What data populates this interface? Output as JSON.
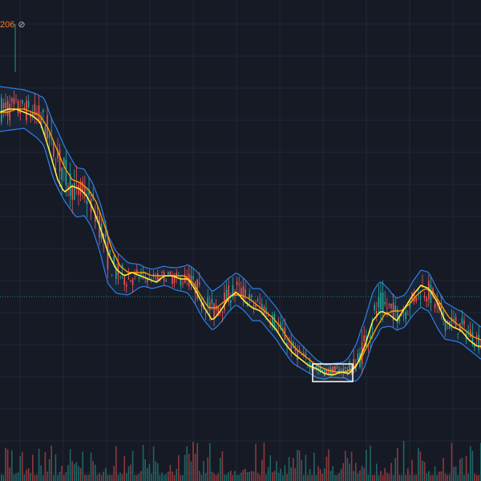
{
  "legend": {
    "value_text": "206",
    "hidden_icon": "eye-slash-icon",
    "value_color": "#ff7b1a"
  },
  "chart_data": {
    "type": "candlestick",
    "grid": true,
    "x_axis_visible": false,
    "y_axis_visible": false,
    "colors": {
      "background": "#161a25",
      "grid": "#232736",
      "up_candle": "#26a69a",
      "down_candle": "#ef5350",
      "ma_fast": "#ffeb3b",
      "ma_slow": "#ff9800",
      "bollinger_band": "#2f7ee6",
      "bollinger_fill": "#1c2c44",
      "price_line": "#1e8c7e",
      "selection_box": "#ffffff"
    },
    "price_line_level": 0.275,
    "ylim": [
      0,
      1
    ],
    "midline": [
      [
        0,
        0.86
      ],
      [
        15,
        0.86
      ],
      [
        30,
        0.86
      ],
      [
        45,
        0.84
      ],
      [
        55,
        0.82
      ],
      [
        65,
        0.74
      ],
      [
        80,
        0.66
      ],
      [
        95,
        0.6
      ],
      [
        105,
        0.6
      ],
      [
        115,
        0.56
      ],
      [
        125,
        0.49
      ],
      [
        135,
        0.39
      ],
      [
        145,
        0.35
      ],
      [
        160,
        0.33
      ],
      [
        175,
        0.34
      ],
      [
        190,
        0.33
      ],
      [
        205,
        0.34
      ],
      [
        220,
        0.33
      ],
      [
        235,
        0.33
      ],
      [
        245,
        0.3
      ],
      [
        255,
        0.26
      ],
      [
        265,
        0.23
      ],
      [
        275,
        0.25
      ],
      [
        285,
        0.28
      ],
      [
        295,
        0.3
      ],
      [
        305,
        0.28
      ],
      [
        315,
        0.25
      ],
      [
        325,
        0.25
      ],
      [
        335,
        0.22
      ],
      [
        345,
        0.19
      ],
      [
        355,
        0.15
      ],
      [
        365,
        0.11
      ],
      [
        375,
        0.09
      ],
      [
        385,
        0.07
      ],
      [
        395,
        0.05
      ],
      [
        405,
        0.04
      ],
      [
        415,
        0.045
      ],
      [
        425,
        0.045
      ],
      [
        435,
        0.05
      ],
      [
        445,
        0.07
      ],
      [
        455,
        0.13
      ],
      [
        465,
        0.21
      ],
      [
        475,
        0.25
      ],
      [
        485,
        0.24
      ],
      [
        495,
        0.22
      ],
      [
        505,
        0.23
      ],
      [
        515,
        0.27
      ],
      [
        525,
        0.3
      ],
      [
        535,
        0.29
      ],
      [
        545,
        0.24
      ],
      [
        555,
        0.2
      ],
      [
        565,
        0.19
      ],
      [
        575,
        0.18
      ],
      [
        585,
        0.16
      ],
      [
        595,
        0.14
      ],
      [
        600,
        0.13
      ]
    ],
    "ma_fast_series": [
      [
        0,
        0.85
      ],
      [
        10,
        0.86
      ],
      [
        20,
        0.86
      ],
      [
        30,
        0.85
      ],
      [
        40,
        0.84
      ],
      [
        50,
        0.82
      ],
      [
        58,
        0.76
      ],
      [
        65,
        0.7
      ],
      [
        72,
        0.64
      ],
      [
        80,
        0.6
      ],
      [
        90,
        0.62
      ],
      [
        100,
        0.61
      ],
      [
        108,
        0.59
      ],
      [
        116,
        0.55
      ],
      [
        125,
        0.49
      ],
      [
        135,
        0.41
      ],
      [
        145,
        0.36
      ],
      [
        155,
        0.34
      ],
      [
        165,
        0.35
      ],
      [
        175,
        0.34
      ],
      [
        185,
        0.33
      ],
      [
        195,
        0.32
      ],
      [
        205,
        0.34
      ],
      [
        215,
        0.34
      ],
      [
        225,
        0.33
      ],
      [
        235,
        0.33
      ],
      [
        245,
        0.29
      ],
      [
        255,
        0.24
      ],
      [
        265,
        0.2
      ],
      [
        275,
        0.23
      ],
      [
        285,
        0.27
      ],
      [
        295,
        0.29
      ],
      [
        305,
        0.26
      ],
      [
        315,
        0.24
      ],
      [
        325,
        0.23
      ],
      [
        335,
        0.2
      ],
      [
        345,
        0.17
      ],
      [
        355,
        0.13
      ],
      [
        365,
        0.1
      ],
      [
        375,
        0.08
      ],
      [
        385,
        0.06
      ],
      [
        395,
        0.05
      ],
      [
        405,
        0.035
      ],
      [
        415,
        0.03
      ],
      [
        425,
        0.04
      ],
      [
        435,
        0.035
      ],
      [
        445,
        0.06
      ],
      [
        455,
        0.12
      ],
      [
        465,
        0.2
      ],
      [
        475,
        0.23
      ],
      [
        485,
        0.22
      ],
      [
        495,
        0.2
      ],
      [
        505,
        0.24
      ],
      [
        515,
        0.28
      ],
      [
        525,
        0.31
      ],
      [
        535,
        0.3
      ],
      [
        545,
        0.26
      ],
      [
        555,
        0.2
      ],
      [
        565,
        0.18
      ],
      [
        575,
        0.17
      ],
      [
        585,
        0.14
      ],
      [
        595,
        0.12
      ],
      [
        600,
        0.12
      ]
    ],
    "ma_slow_series": [
      [
        0,
        0.85
      ],
      [
        10,
        0.85
      ],
      [
        20,
        0.86
      ],
      [
        30,
        0.86
      ],
      [
        40,
        0.85
      ],
      [
        50,
        0.84
      ],
      [
        60,
        0.8
      ],
      [
        70,
        0.74
      ],
      [
        80,
        0.68
      ],
      [
        90,
        0.64
      ],
      [
        100,
        0.63
      ],
      [
        110,
        0.61
      ],
      [
        120,
        0.57
      ],
      [
        130,
        0.5
      ],
      [
        140,
        0.42
      ],
      [
        150,
        0.37
      ],
      [
        160,
        0.35
      ],
      [
        170,
        0.35
      ],
      [
        180,
        0.35
      ],
      [
        190,
        0.34
      ],
      [
        200,
        0.34
      ],
      [
        210,
        0.34
      ],
      [
        220,
        0.34
      ],
      [
        230,
        0.34
      ],
      [
        240,
        0.32
      ],
      [
        250,
        0.28
      ],
      [
        260,
        0.24
      ],
      [
        270,
        0.24
      ],
      [
        280,
        0.26
      ],
      [
        290,
        0.28
      ],
      [
        300,
        0.28
      ],
      [
        310,
        0.27
      ],
      [
        320,
        0.25
      ],
      [
        330,
        0.23
      ],
      [
        340,
        0.21
      ],
      [
        350,
        0.18
      ],
      [
        360,
        0.14
      ],
      [
        370,
        0.11
      ],
      [
        380,
        0.09
      ],
      [
        390,
        0.07
      ],
      [
        400,
        0.055
      ],
      [
        410,
        0.045
      ],
      [
        420,
        0.04
      ],
      [
        430,
        0.04
      ],
      [
        440,
        0.05
      ],
      [
        450,
        0.08
      ],
      [
        460,
        0.13
      ],
      [
        470,
        0.18
      ],
      [
        480,
        0.22
      ],
      [
        490,
        0.23
      ],
      [
        500,
        0.23
      ],
      [
        510,
        0.25
      ],
      [
        520,
        0.28
      ],
      [
        530,
        0.3
      ],
      [
        540,
        0.29
      ],
      [
        550,
        0.25
      ],
      [
        560,
        0.21
      ],
      [
        570,
        0.19
      ],
      [
        580,
        0.17
      ],
      [
        590,
        0.15
      ],
      [
        600,
        0.14
      ]
    ],
    "band_halfwidth": [
      [
        0,
        0.07
      ],
      [
        30,
        0.06
      ],
      [
        50,
        0.07
      ],
      [
        70,
        0.09
      ],
      [
        90,
        0.08
      ],
      [
        110,
        0.07
      ],
      [
        130,
        0.08
      ],
      [
        150,
        0.06
      ],
      [
        180,
        0.03
      ],
      [
        210,
        0.03
      ],
      [
        230,
        0.04
      ],
      [
        250,
        0.06
      ],
      [
        270,
        0.06
      ],
      [
        290,
        0.05
      ],
      [
        310,
        0.05
      ],
      [
        330,
        0.05
      ],
      [
        350,
        0.05
      ],
      [
        370,
        0.04
      ],
      [
        390,
        0.03
      ],
      [
        410,
        0.02
      ],
      [
        430,
        0.025
      ],
      [
        450,
        0.07
      ],
      [
        470,
        0.08
      ],
      [
        490,
        0.05
      ],
      [
        510,
        0.05
      ],
      [
        530,
        0.06
      ],
      [
        550,
        0.06
      ],
      [
        570,
        0.05
      ],
      [
        600,
        0.05
      ]
    ],
    "selection": {
      "x_from": 390,
      "x_to": 440,
      "y_from": 0.05,
      "y_to": 0.025
    },
    "volume_ceiling": 1.0
  }
}
